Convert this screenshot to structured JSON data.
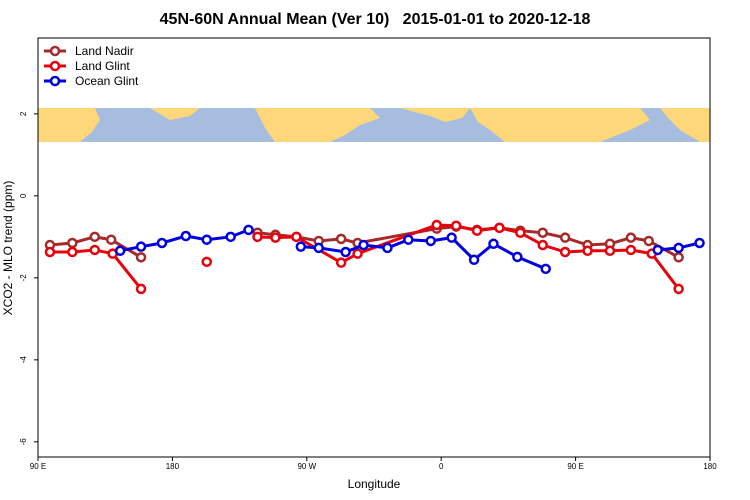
{
  "chart_data": {
    "type": "line",
    "title": "45N-60N Annual Mean (Ver 10)   2015-01-01 to 2020-12-18",
    "x_label": "Longitude",
    "y_label": "XCO2 - MLO trend (ppm)",
    "xlim": [
      90,
      540
    ],
    "ylim": [
      -6.37,
      3.85
    ],
    "xticks": [
      {
        "value": 90,
        "label": "90 E"
      },
      180,
      {
        "value": 270,
        "label": "90 W"
      },
      {
        "value": 360,
        "label": "0"
      },
      {
        "value": 450,
        "label": "90 E"
      },
      {
        "value": 540,
        "label": "180"
      }
    ],
    "yticks": [
      -6,
      -4,
      -2,
      0,
      2
    ],
    "legend": "top-left",
    "series": [
      {
        "name": "Land Nadir",
        "color": "#a52a2a",
        "x": [
          98,
          113,
          128,
          139,
          159,
          null,
          237,
          249,
          263,
          278,
          293,
          304,
          357,
          370,
          384,
          399,
          413,
          428,
          443,
          458,
          473,
          487,
          499,
          519
        ],
        "values": [
          -1.2,
          -1.15,
          -1.0,
          -1.07,
          -1.5,
          null,
          -0.9,
          -0.95,
          -1.0,
          -1.1,
          -1.05,
          -1.15,
          -0.8,
          -0.75,
          -0.83,
          -0.78,
          -0.85,
          -0.9,
          -1.02,
          -1.2,
          -1.17,
          -1.02,
          -1.1,
          -1.5
        ]
      },
      {
        "name": "Land Glint",
        "color": "#e8000b",
        "x": [
          98,
          113,
          128,
          140,
          159,
          null,
          203,
          null,
          237,
          249,
          263,
          293,
          304,
          357,
          370,
          384,
          399,
          413,
          428,
          443,
          458,
          473,
          487,
          501,
          519
        ],
        "values": [
          -1.37,
          -1.37,
          -1.32,
          -1.41,
          -2.27,
          null,
          -1.61,
          null,
          -1.0,
          -1.02,
          -1.0,
          -1.63,
          -1.41,
          -0.71,
          -0.73,
          -0.85,
          -0.78,
          -0.9,
          -1.2,
          -1.37,
          -1.34,
          -1.34,
          -1.32,
          -1.41,
          -2.27
        ]
      },
      {
        "name": "Ocean Glint",
        "color": "#0000e0",
        "x": [
          145,
          159,
          173,
          189,
          203,
          219,
          231,
          null,
          266,
          278,
          296,
          308,
          324,
          338,
          353,
          367,
          382,
          395,
          411,
          430,
          null,
          505,
          519,
          533
        ],
        "values": [
          -1.34,
          -1.24,
          -1.15,
          -0.98,
          -1.07,
          -1.0,
          -0.83,
          null,
          -1.24,
          -1.27,
          -1.37,
          -1.2,
          -1.27,
          -1.07,
          -1.1,
          -1.02,
          -1.56,
          -1.17,
          -1.49,
          -1.78,
          null,
          -1.32,
          -1.27,
          -1.15
        ]
      }
    ]
  }
}
